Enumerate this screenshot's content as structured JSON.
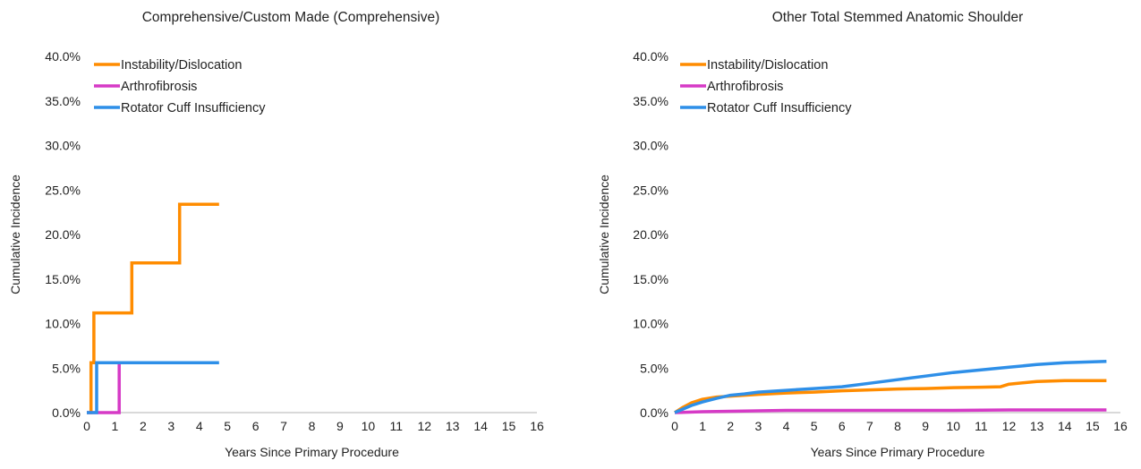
{
  "colors": {
    "instability": "#FF8C00",
    "arthrofibrosis": "#D63AC6",
    "rotator_cuff": "#2E8FE8",
    "axis": "#d9d9d9"
  },
  "chart_data": [
    {
      "type": "line",
      "title": "Comprehensive/Custom Made (Comprehensive)",
      "xlabel": "Years Since Primary Procedure",
      "ylabel": "Cumulative Incidence",
      "xlim": [
        0,
        16
      ],
      "ylim": [
        0,
        40
      ],
      "x_ticks": [
        "0",
        "1",
        "2",
        "3",
        "4",
        "5",
        "6",
        "7",
        "8",
        "9",
        "10",
        "11",
        "12",
        "13",
        "14",
        "15",
        "16"
      ],
      "y_ticks": [
        "0.0%",
        "5.0%",
        "10.0%",
        "15.0%",
        "20.0%",
        "25.0%",
        "30.0%",
        "35.0%",
        "40.0%"
      ],
      "step": true,
      "legend_position": "top-left",
      "series": [
        {
          "name": "Instability/Dislocation",
          "color": "#FF8C00",
          "points": [
            [
              0,
              0
            ],
            [
              0.15,
              0
            ],
            [
              0.15,
              5.6
            ],
            [
              0.25,
              5.6
            ],
            [
              0.25,
              11.2
            ],
            [
              1.6,
              11.2
            ],
            [
              1.6,
              16.8
            ],
            [
              3.3,
              16.8
            ],
            [
              3.3,
              23.4
            ],
            [
              4.7,
              23.4
            ]
          ]
        },
        {
          "name": "Arthrofibrosis",
          "color": "#D63AC6",
          "points": [
            [
              0,
              0
            ],
            [
              1.15,
              0
            ],
            [
              1.15,
              5.6
            ]
          ]
        },
        {
          "name": "Rotator Cuff Insufficiency",
          "color": "#2E8FE8",
          "points": [
            [
              0,
              0
            ],
            [
              0.35,
              0
            ],
            [
              0.35,
              5.6
            ],
            [
              4.7,
              5.6
            ]
          ]
        }
      ]
    },
    {
      "type": "line",
      "title": "Other Total Stemmed Anatomic Shoulder",
      "xlabel": "Years Since Primary Procedure",
      "ylabel": "Cumulative Incidence",
      "xlim": [
        0,
        16
      ],
      "ylim": [
        0,
        40
      ],
      "x_ticks": [
        "0",
        "1",
        "2",
        "3",
        "4",
        "5",
        "6",
        "7",
        "8",
        "9",
        "10",
        "11",
        "12",
        "13",
        "14",
        "15",
        "16"
      ],
      "y_ticks": [
        "0.0%",
        "5.0%",
        "10.0%",
        "15.0%",
        "20.0%",
        "25.0%",
        "30.0%",
        "35.0%",
        "40.0%"
      ],
      "step": false,
      "legend_position": "top-left",
      "series": [
        {
          "name": "Instability/Dislocation",
          "color": "#FF8C00",
          "points": [
            [
              0,
              0
            ],
            [
              0.3,
              0.6
            ],
            [
              0.6,
              1.1
            ],
            [
              1,
              1.5
            ],
            [
              1.5,
              1.75
            ],
            [
              2,
              1.85
            ],
            [
              2.5,
              1.95
            ],
            [
              3,
              2.05
            ],
            [
              4,
              2.2
            ],
            [
              5,
              2.3
            ],
            [
              6,
              2.45
            ],
            [
              7,
              2.55
            ],
            [
              8,
              2.65
            ],
            [
              9,
              2.7
            ],
            [
              10,
              2.8
            ],
            [
              11,
              2.85
            ],
            [
              11.7,
              2.9
            ],
            [
              12,
              3.2
            ],
            [
              13,
              3.5
            ],
            [
              14,
              3.6
            ],
            [
              15.5,
              3.6
            ]
          ]
        },
        {
          "name": "Arthrofibrosis",
          "color": "#D63AC6",
          "points": [
            [
              0,
              0
            ],
            [
              0.5,
              0.05
            ],
            [
              1,
              0.1
            ],
            [
              2,
              0.15
            ],
            [
              3,
              0.2
            ],
            [
              4,
              0.25
            ],
            [
              6,
              0.25
            ],
            [
              8,
              0.25
            ],
            [
              10,
              0.25
            ],
            [
              12,
              0.3
            ],
            [
              14,
              0.3
            ],
            [
              15.5,
              0.3
            ]
          ]
        },
        {
          "name": "Rotator Cuff Insufficiency",
          "color": "#2E8FE8",
          "points": [
            [
              0,
              0
            ],
            [
              0.3,
              0.4
            ],
            [
              0.6,
              0.8
            ],
            [
              1,
              1.2
            ],
            [
              1.5,
              1.6
            ],
            [
              2,
              1.95
            ],
            [
              2.5,
              2.1
            ],
            [
              3,
              2.3
            ],
            [
              3.5,
              2.4
            ],
            [
              4,
              2.5
            ],
            [
              5,
              2.7
            ],
            [
              6,
              2.9
            ],
            [
              7,
              3.3
            ],
            [
              8,
              3.7
            ],
            [
              9,
              4.1
            ],
            [
              10,
              4.5
            ],
            [
              11,
              4.8
            ],
            [
              12,
              5.1
            ],
            [
              13,
              5.4
            ],
            [
              14,
              5.6
            ],
            [
              15,
              5.7
            ],
            [
              15.5,
              5.75
            ]
          ]
        }
      ]
    }
  ]
}
